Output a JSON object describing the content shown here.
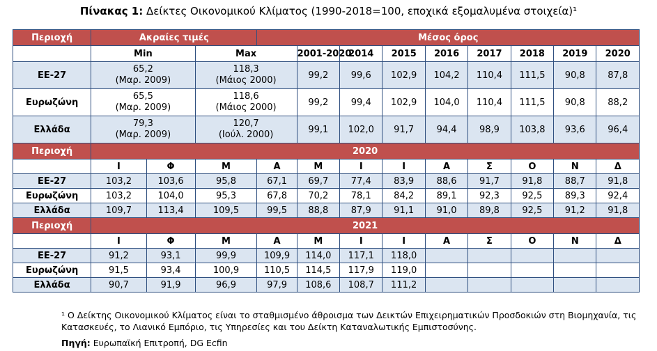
{
  "title": {
    "label": "Πίνακας 1:",
    "text": " Δείκτες Οικονομικού Κλίματος (1990-2018=100, εποχικά εξομαλυμένα στοιχεία)¹"
  },
  "headers": {
    "region": "Περιοχή",
    "extremes": "Ακραίες τιμές",
    "average": "Μέσος όρος",
    "min": "Min",
    "max": "Max",
    "years": [
      "2001-2020",
      "2014",
      "2015",
      "2016",
      "2017",
      "2018",
      "2019",
      "2020"
    ]
  },
  "summary_rows": [
    {
      "region": "ΕΕ-27",
      "min_value": "65,2",
      "min_date": "(Μαρ. 2009)",
      "max_value": "118,3",
      "max_date": "(Μάιος 2000)",
      "values": [
        "99,2",
        "99,6",
        "102,9",
        "104,2",
        "110,4",
        "111,5",
        "90,8",
        "87,8"
      ]
    },
    {
      "region": "Ευρωζώνη",
      "min_value": "65,5",
      "min_date": "(Μαρ. 2009)",
      "max_value": "118,6",
      "max_date": "(Μάιος 2000)",
      "values": [
        "99,2",
        "99,4",
        "102,9",
        "104,0",
        "110,4",
        "111,5",
        "90,8",
        "88,2"
      ]
    },
    {
      "region": "Ελλάδα",
      "min_value": "79,3",
      "min_date": "(Μαρ. 2009)",
      "max_value": "120,7",
      "max_date": "(Ιούλ. 2000)",
      "values": [
        "99,1",
        "102,0",
        "91,7",
        "94,4",
        "98,9",
        "103,8",
        "93,6",
        "96,4"
      ]
    }
  ],
  "months": [
    "Ι",
    "Φ",
    "Μ",
    "Α",
    "Μ",
    "Ι",
    "Ι",
    "Α",
    "Σ",
    "Ο",
    "Ν",
    "Δ"
  ],
  "year_2020": {
    "region_label": "Περιοχή",
    "year": "2020",
    "rows": [
      {
        "region": "ΕΕ-27",
        "values": [
          "103,2",
          "103,6",
          "95,8",
          "67,1",
          "69,7",
          "77,4",
          "83,9",
          "88,6",
          "91,7",
          "91,8",
          "88,7",
          "91,8"
        ]
      },
      {
        "region": "Ευρωζώνη",
        "values": [
          "103,2",
          "104,0",
          "95,3",
          "67,8",
          "70,2",
          "78,1",
          "84,2",
          "89,1",
          "92,3",
          "92,5",
          "89,3",
          "92,4"
        ]
      },
      {
        "region": "Ελλάδα",
        "values": [
          "109,7",
          "113,4",
          "109,5",
          "99,5",
          "88,8",
          "87,9",
          "91,1",
          "91,0",
          "89,8",
          "92,5",
          "91,2",
          "91,8"
        ]
      }
    ]
  },
  "year_2021": {
    "region_label": "Περιοχή",
    "year": "2021",
    "rows": [
      {
        "region": "ΕΕ-27",
        "values": [
          "91,2",
          "93,1",
          "99,9",
          "109,9",
          "114,0",
          "117,1",
          "118,0",
          "",
          "",
          "",
          "",
          ""
        ]
      },
      {
        "region": "Ευρωζώνη",
        "values": [
          "91,5",
          "93,4",
          "100,9",
          "110,5",
          "114,5",
          "117,9",
          "119,0",
          "",
          "",
          "",
          "",
          ""
        ]
      },
      {
        "region": "Ελλάδα",
        "values": [
          "90,7",
          "91,9",
          "96,9",
          "97,9",
          "108,6",
          "108,7",
          "111,2",
          "",
          "",
          "",
          "",
          ""
        ]
      }
    ]
  },
  "footnote": "¹ Ο Δείκτης Οικονομικού Κλίματος είναι το σταθμισμένο άθροισμα των Δεικτών Επιχειρηματικών Προσδοκιών στη Βιομηχανία, τις Κατασκευές, το Λιανικό Εμπόριο, τις Υπηρεσίες και του Δείκτη Καταναλωτικής Εμπιστοσύνης.",
  "source": {
    "label": "Πηγή:",
    "text": " Ευρωπαϊκή Επιτροπή, DG Ecfin"
  }
}
